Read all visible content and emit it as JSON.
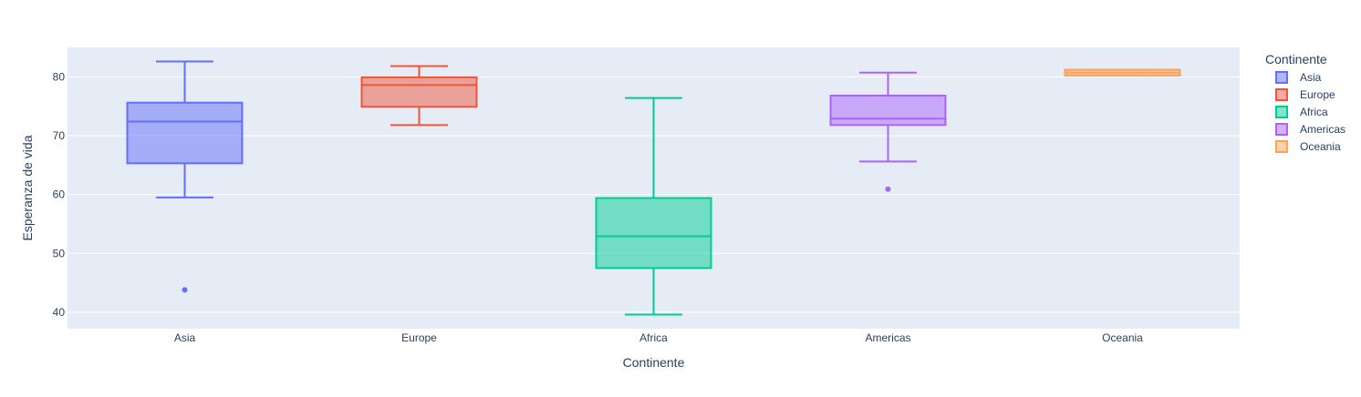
{
  "chart_data": {
    "type": "box",
    "xlabel": "Continente",
    "ylabel": "Esperanza de vida",
    "ylim": [
      37.2,
      85.0
    ],
    "yticks": [
      40,
      50,
      60,
      70,
      80
    ],
    "grid": true,
    "legend": {
      "title": "Continente",
      "placement": "top-right"
    },
    "categories": [
      "Asia",
      "Europe",
      "Africa",
      "Americas",
      "Oceania"
    ],
    "series": [
      {
        "name": "Asia",
        "color": "#636efa",
        "fill": "rgba(99,110,250,0.5)",
        "whisker_low": 59.5,
        "q1": 65.3,
        "median": 72.4,
        "q3": 75.6,
        "whisker_high": 82.6,
        "outliers": [
          43.8
        ]
      },
      {
        "name": "Europe",
        "color": "#EF553B",
        "fill": "rgba(239,85,59,0.5)",
        "whisker_low": 71.8,
        "q1": 74.9,
        "median": 78.6,
        "q3": 79.9,
        "whisker_high": 81.8,
        "outliers": []
      },
      {
        "name": "Africa",
        "color": "#00cc96",
        "fill": "rgba(0,204,150,0.5)",
        "whisker_low": 39.6,
        "q1": 47.5,
        "median": 52.9,
        "q3": 59.4,
        "whisker_high": 76.4,
        "outliers": []
      },
      {
        "name": "Americas",
        "color": "#ab63fa",
        "fill": "rgba(171,99,250,0.5)",
        "whisker_low": 65.6,
        "q1": 71.8,
        "median": 72.9,
        "q3": 76.8,
        "whisker_high": 80.7,
        "outliers": [
          60.9
        ]
      },
      {
        "name": "Oceania",
        "color": "#FFA15A",
        "fill": "rgba(255,161,90,0.5)",
        "whisker_low": 80.2,
        "q1": 80.2,
        "median": 80.7,
        "q3": 81.2,
        "whisker_high": 81.2,
        "outliers": []
      }
    ]
  }
}
